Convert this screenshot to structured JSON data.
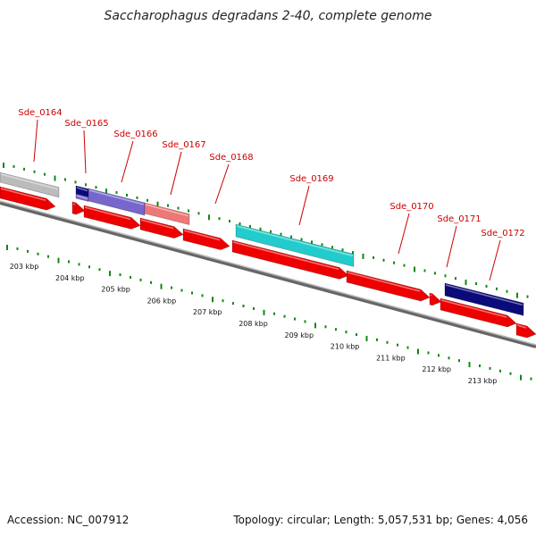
{
  "title": "Saccharophagus degradans 2-40, complete genome",
  "footer": {
    "accession": "Accession: NC_007912",
    "summary": "Topology: circular; Length: 5,057,531 bp; Genes: 4,056"
  },
  "colors": {
    "cds": "#ee0000",
    "backbone": "#888888",
    "label": "#cc0000",
    "tick": "#118811",
    "feature_gray": "#bbbbbb",
    "feature_navy": "#0a0a7a",
    "feature_slate": "#7766cc",
    "feature_salmon": "#ee7777",
    "feature_cyan": "#22cccc"
  },
  "gene_labels": [
    "Sde_0164",
    "Sde_0165",
    "Sde_0166",
    "Sde_0167",
    "Sde_0168",
    "Sde_0169",
    "Sde_0170",
    "Sde_0171",
    "Sde_0172"
  ],
  "kbp_labels": [
    "203 kbp",
    "204 kbp",
    "205 kbp",
    "206 kbp",
    "207 kbp",
    "208 kbp",
    "209 kbp",
    "210 kbp",
    "211 kbp",
    "212 kbp",
    "213 kbp"
  ]
}
